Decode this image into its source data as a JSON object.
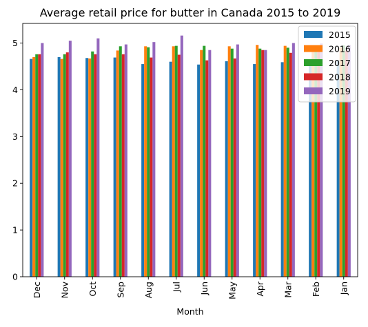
{
  "chart_data": {
    "type": "bar",
    "title": "Average retail price for butter in Canada 2015 to 2019",
    "xlabel": "Month",
    "ylabel": "",
    "ylim": [
      0,
      5.42
    ],
    "yticks": [
      0,
      1,
      2,
      3,
      4,
      5
    ],
    "categories": [
      "Dec",
      "Nov",
      "Oct",
      "Sep",
      "Aug",
      "Jul",
      "Jun",
      "May",
      "Apr",
      "Mar",
      "Feb",
      "Jan"
    ],
    "legend_position": "top-right",
    "grid": false,
    "series": [
      {
        "name": "2015",
        "color": "#1f77b4",
        "values": [
          4.66,
          4.7,
          4.68,
          4.69,
          4.55,
          4.6,
          4.54,
          4.61,
          4.55,
          4.59,
          4.58,
          4.63
        ]
      },
      {
        "name": "2016",
        "color": "#ff7f0e",
        "values": [
          4.7,
          4.66,
          4.67,
          4.84,
          4.93,
          4.93,
          4.85,
          4.93,
          4.96,
          4.94,
          4.86,
          4.91
        ]
      },
      {
        "name": "2017",
        "color": "#2ca02c",
        "values": [
          4.76,
          4.76,
          4.82,
          4.93,
          4.91,
          4.94,
          4.94,
          4.88,
          4.88,
          4.9,
          4.87,
          4.95
        ]
      },
      {
        "name": "2018",
        "color": "#d62728",
        "values": [
          4.76,
          4.8,
          4.76,
          4.76,
          4.69,
          4.75,
          4.63,
          4.67,
          4.85,
          4.79,
          4.82,
          4.84
        ]
      },
      {
        "name": "2019",
        "color": "#9467bd",
        "values": [
          5.0,
          5.05,
          5.1,
          4.97,
          5.02,
          5.16,
          4.85,
          4.97,
          4.85,
          5.0,
          4.99,
          4.96
        ]
      }
    ]
  }
}
